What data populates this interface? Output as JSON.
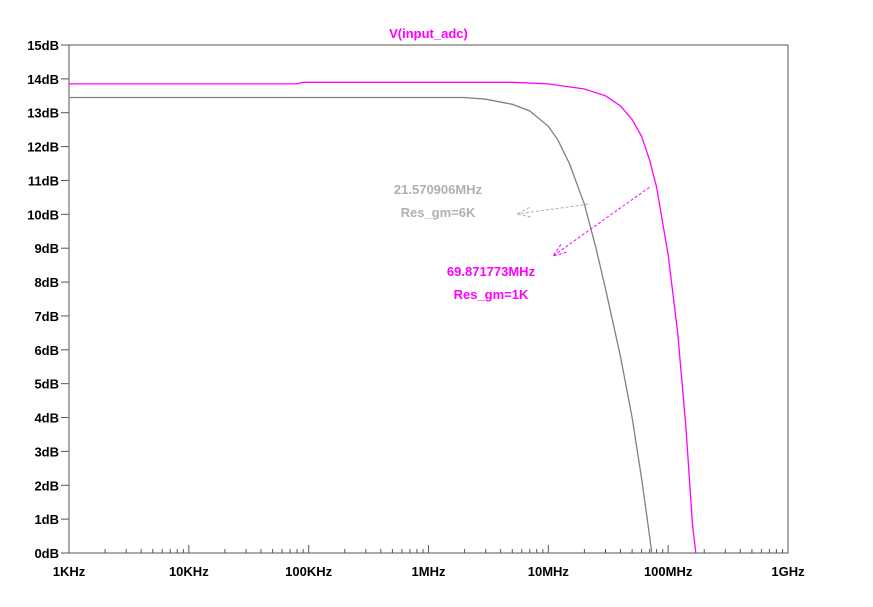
{
  "chart_data": {
    "type": "line",
    "title": "V(input_adc)",
    "xscale": "log",
    "xlim": [
      1000,
      1000000000
    ],
    "ylim": [
      0,
      15
    ],
    "x_ticks": [
      {
        "value": 1000,
        "label": "1KHz"
      },
      {
        "value": 10000,
        "label": "10KHz"
      },
      {
        "value": 100000,
        "label": "100KHz"
      },
      {
        "value": 1000000,
        "label": "1MHz"
      },
      {
        "value": 10000000,
        "label": "10MHz"
      },
      {
        "value": 100000000,
        "label": "100MHz"
      },
      {
        "value": 1000000000,
        "label": "1GHz"
      }
    ],
    "y_ticks": [
      {
        "value": 0,
        "label": "0dB"
      },
      {
        "value": 1,
        "label": "1dB"
      },
      {
        "value": 2,
        "label": "2dB"
      },
      {
        "value": 3,
        "label": "3dB"
      },
      {
        "value": 4,
        "label": "4dB"
      },
      {
        "value": 5,
        "label": "5dB"
      },
      {
        "value": 6,
        "label": "6dB"
      },
      {
        "value": 7,
        "label": "7dB"
      },
      {
        "value": 8,
        "label": "8dB"
      },
      {
        "value": 9,
        "label": "9dB"
      },
      {
        "value": 10,
        "label": "10dB"
      },
      {
        "value": 11,
        "label": "11dB"
      },
      {
        "value": 12,
        "label": "12dB"
      },
      {
        "value": 13,
        "label": "13dB"
      },
      {
        "value": 14,
        "label": "14dB"
      },
      {
        "value": 15,
        "label": "15dB"
      }
    ],
    "grid": false,
    "series": [
      {
        "name": "Res_gm=6K",
        "color": "#808080",
        "x": [
          1000,
          10000,
          100000,
          1000000,
          2000000,
          3000000,
          5000000,
          7000000,
          10000000,
          12000000,
          15000000,
          20000000,
          25000000,
          30000000,
          40000000,
          50000000,
          60000000,
          70000000,
          73000000
        ],
        "y": [
          13.45,
          13.45,
          13.45,
          13.45,
          13.45,
          13.4,
          13.25,
          13.05,
          12.6,
          12.2,
          11.5,
          10.3,
          9.0,
          7.8,
          5.8,
          4.0,
          2.2,
          0.5,
          0
        ]
      },
      {
        "name": "Res_gm=1K",
        "color": "#ff00ff",
        "x": [
          1000,
          10000,
          80000,
          90000,
          1000000,
          5000000,
          10000000,
          20000000,
          30000000,
          40000000,
          50000000,
          60000000,
          70000000,
          80000000,
          100000000,
          120000000,
          140000000,
          160000000,
          170000000
        ],
        "y": [
          13.85,
          13.85,
          13.85,
          13.9,
          13.9,
          13.9,
          13.85,
          13.7,
          13.5,
          13.2,
          12.8,
          12.3,
          11.6,
          10.8,
          8.8,
          6.5,
          3.8,
          0.8,
          0
        ]
      }
    ],
    "annotations": [
      {
        "lines": [
          "21.570906MHz",
          "Res_gm=6K"
        ],
        "color": "#b0b0b0",
        "point": [
          21570906,
          10.3
        ]
      },
      {
        "lines": [
          "69.871773MHz",
          "Res_gm=1K"
        ],
        "color": "#ff00ff",
        "point": [
          69871773,
          10.8
        ]
      }
    ]
  }
}
